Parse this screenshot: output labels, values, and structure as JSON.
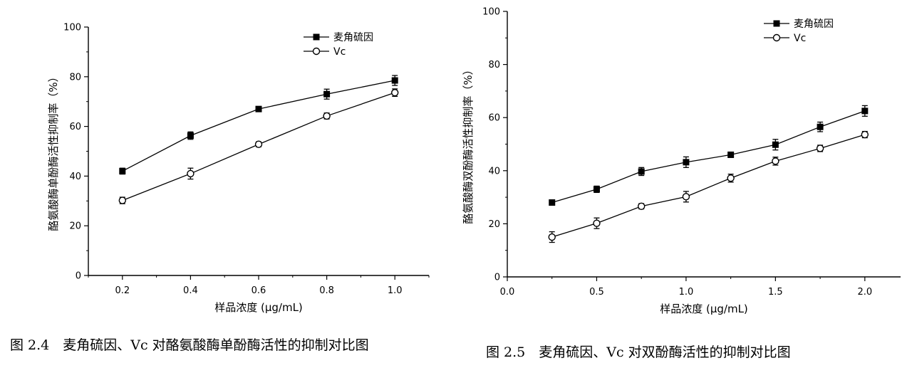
{
  "chart_data": [
    {
      "type": "line",
      "xlabel": "样品浓度 (μg/mL)",
      "ylabel": "酪氨酸酶单酚酶活性抑制率（%）",
      "x": [
        0.2,
        0.4,
        0.6,
        0.8,
        1.0
      ],
      "xticks": [
        "0.2",
        "0.4",
        "0.6",
        "0.8",
        "1.0"
      ],
      "xlim": [
        0.1,
        1.1
      ],
      "yticks": [
        "0",
        "20",
        "40",
        "60",
        "80",
        "100"
      ],
      "ylim": [
        0,
        100
      ],
      "grid": false,
      "legend_position": "top-right",
      "series": [
        {
          "name": "麦角硫因",
          "marker": "filled-square",
          "values": [
            42,
            56.3,
            67,
            73,
            78.5
          ],
          "errors": [
            1.2,
            1.5,
            1.0,
            2.0,
            2.0
          ]
        },
        {
          "name": "Vc",
          "marker": "open-circle",
          "values": [
            30.2,
            41,
            52.8,
            64.2,
            73.6
          ],
          "errors": [
            1.3,
            2.2,
            1.0,
            1.2,
            1.5
          ]
        }
      ],
      "caption": "图 2.4　麦角硫因、Vc 对酪氨酸酶单酚酶活性的抑制对比图"
    },
    {
      "type": "line",
      "xlabel": "样品浓度 (μg/mL)",
      "ylabel": "酪氨酸酶双酚酶活性抑制率（%）",
      "x": [
        0.25,
        0.5,
        0.75,
        1.0,
        1.25,
        1.5,
        1.75,
        2.0
      ],
      "xticks": [
        "0.0",
        "0.5",
        "1.0",
        "1.5",
        "2.0"
      ],
      "xlim": [
        0,
        2.2
      ],
      "yticks": [
        "0",
        "20",
        "40",
        "60",
        "80",
        "100"
      ],
      "ylim": [
        0,
        100
      ],
      "grid": false,
      "legend_position": "top-right",
      "series": [
        {
          "name": "麦角硫因",
          "marker": "filled-square",
          "values": [
            28,
            33,
            39.7,
            43.2,
            46,
            49.8,
            56.5,
            62.5
          ],
          "errors": [
            1.0,
            1.2,
            1.5,
            2.0,
            1.0,
            2.0,
            1.8,
            2.0
          ]
        },
        {
          "name": "Vc",
          "marker": "open-circle",
          "values": [
            15,
            20.2,
            26.6,
            30.2,
            37.2,
            43.6,
            48.4,
            53.6
          ],
          "errors": [
            2.0,
            2.0,
            1.0,
            2.0,
            1.5,
            1.5,
            1.2,
            1.2
          ]
        }
      ],
      "caption": "图 2.5　麦角硫因、Vc 对双酚酶活性的抑制对比图"
    }
  ]
}
